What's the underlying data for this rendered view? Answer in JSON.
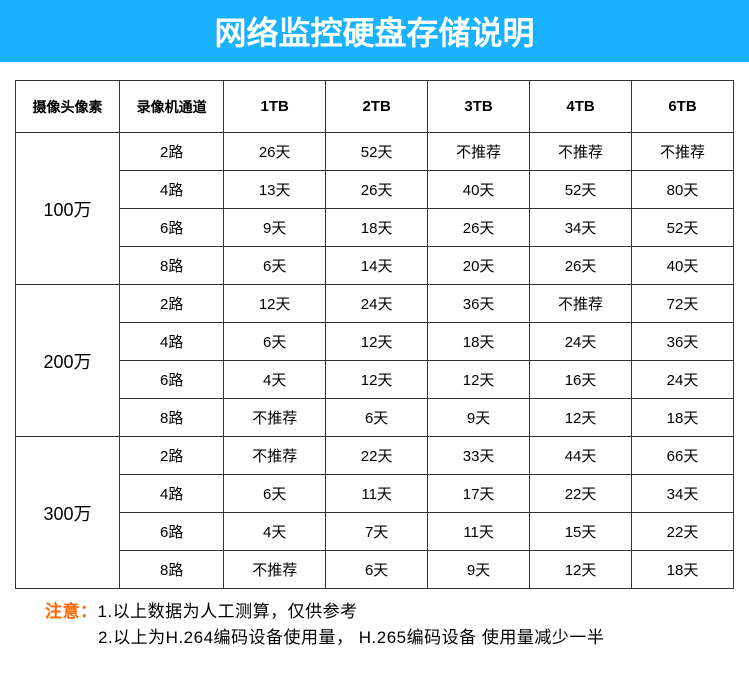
{
  "header": {
    "title": "网络监控硬盘存储说明",
    "bg_color": "#1ab2ff",
    "text_color": "#ffffff",
    "font_size": "32px"
  },
  "table": {
    "columns": [
      "摄像头像素",
      "录像机通道",
      "1TB",
      "2TB",
      "3TB",
      "4TB",
      "6TB"
    ],
    "col_widths": [
      "14.5%",
      "14.5%",
      "14.2%",
      "14.2%",
      "14.2%",
      "14.2%",
      "14.2%"
    ],
    "groups": [
      {
        "pixel": "100万",
        "rows": [
          {
            "channel": "2路",
            "cells": [
              "26天",
              "52天",
              "不推荐",
              "不推荐",
              "不推荐"
            ]
          },
          {
            "channel": "4路",
            "cells": [
              "13天",
              "26天",
              "40天",
              "52天",
              "80天"
            ]
          },
          {
            "channel": "6路",
            "cells": [
              "9天",
              "18天",
              "26天",
              "34天",
              "52天"
            ]
          },
          {
            "channel": "8路",
            "cells": [
              "6天",
              "14天",
              "20天",
              "26天",
              "40天"
            ]
          }
        ]
      },
      {
        "pixel": "200万",
        "rows": [
          {
            "channel": "2路",
            "cells": [
              "12天",
              "24天",
              "36天",
              "不推荐",
              "72天"
            ]
          },
          {
            "channel": "4路",
            "cells": [
              "6天",
              "12天",
              "18天",
              "24天",
              "36天"
            ]
          },
          {
            "channel": "6路",
            "cells": [
              "4天",
              "12天",
              "12天",
              "16天",
              "24天"
            ]
          },
          {
            "channel": "8路",
            "cells": [
              "不推荐",
              "6天",
              "9天",
              "12天",
              "18天"
            ]
          }
        ]
      },
      {
        "pixel": "300万",
        "rows": [
          {
            "channel": "2路",
            "cells": [
              "不推荐",
              "22天",
              "33天",
              "44天",
              "66天"
            ]
          },
          {
            "channel": "4路",
            "cells": [
              "6天",
              "11天",
              "17天",
              "22天",
              "34天"
            ]
          },
          {
            "channel": "6路",
            "cells": [
              "4天",
              "7天",
              "11天",
              "15天",
              "22天"
            ]
          },
          {
            "channel": "8路",
            "cells": [
              "不推荐",
              "6天",
              "9天",
              "12天",
              "18天"
            ]
          }
        ]
      }
    ]
  },
  "notes": {
    "label": "注意：",
    "label_color": "#ff6600",
    "line1": "1.以上数据为人工测算，仅供参考",
    "line2": "2.以上为H.264编码设备使用量，   H.265编码设备 使用量减少一半"
  }
}
